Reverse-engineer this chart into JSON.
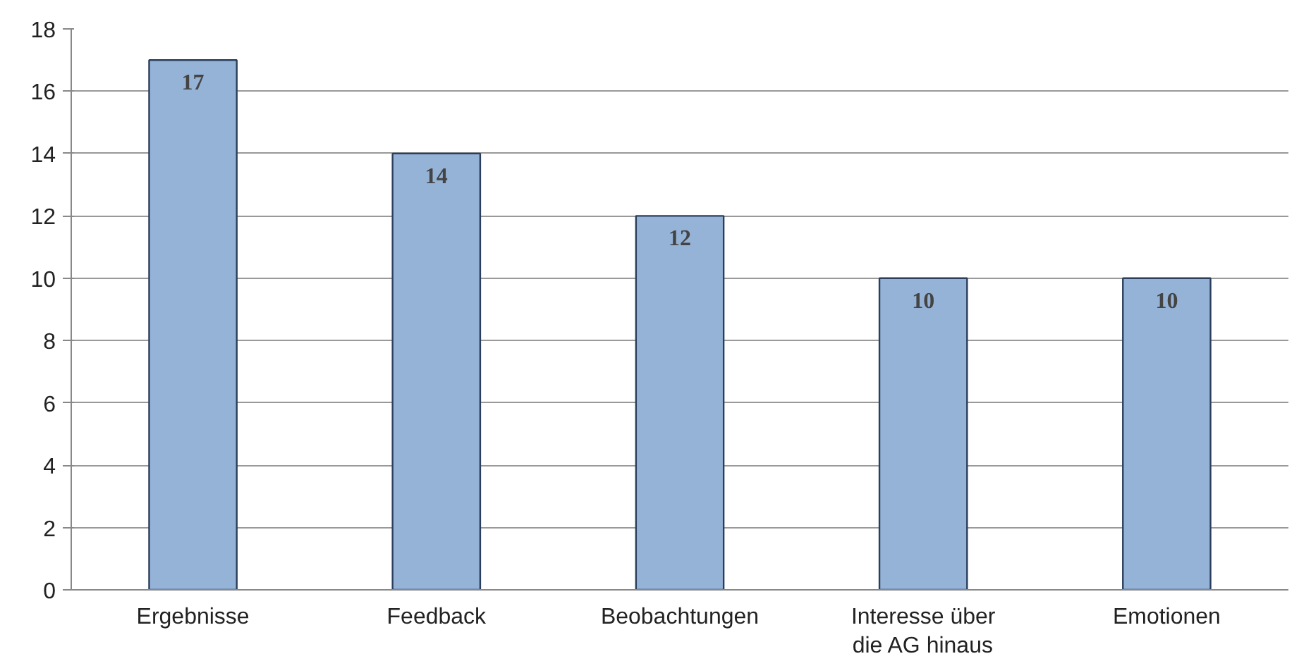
{
  "chart_data": {
    "type": "bar",
    "categories": [
      "Ergebnisse",
      "Feedback",
      "Beobachtungen",
      "Interesse über\ndie AG hinaus",
      "Emotionen"
    ],
    "values": [
      17,
      14,
      12,
      10,
      10
    ],
    "color": "#95b3d7",
    "ylim": [
      0,
      18
    ],
    "yticks": [
      0,
      2,
      4,
      6,
      8,
      10,
      12,
      14,
      16,
      18
    ],
    "grid": "y",
    "data_labels": true
  }
}
